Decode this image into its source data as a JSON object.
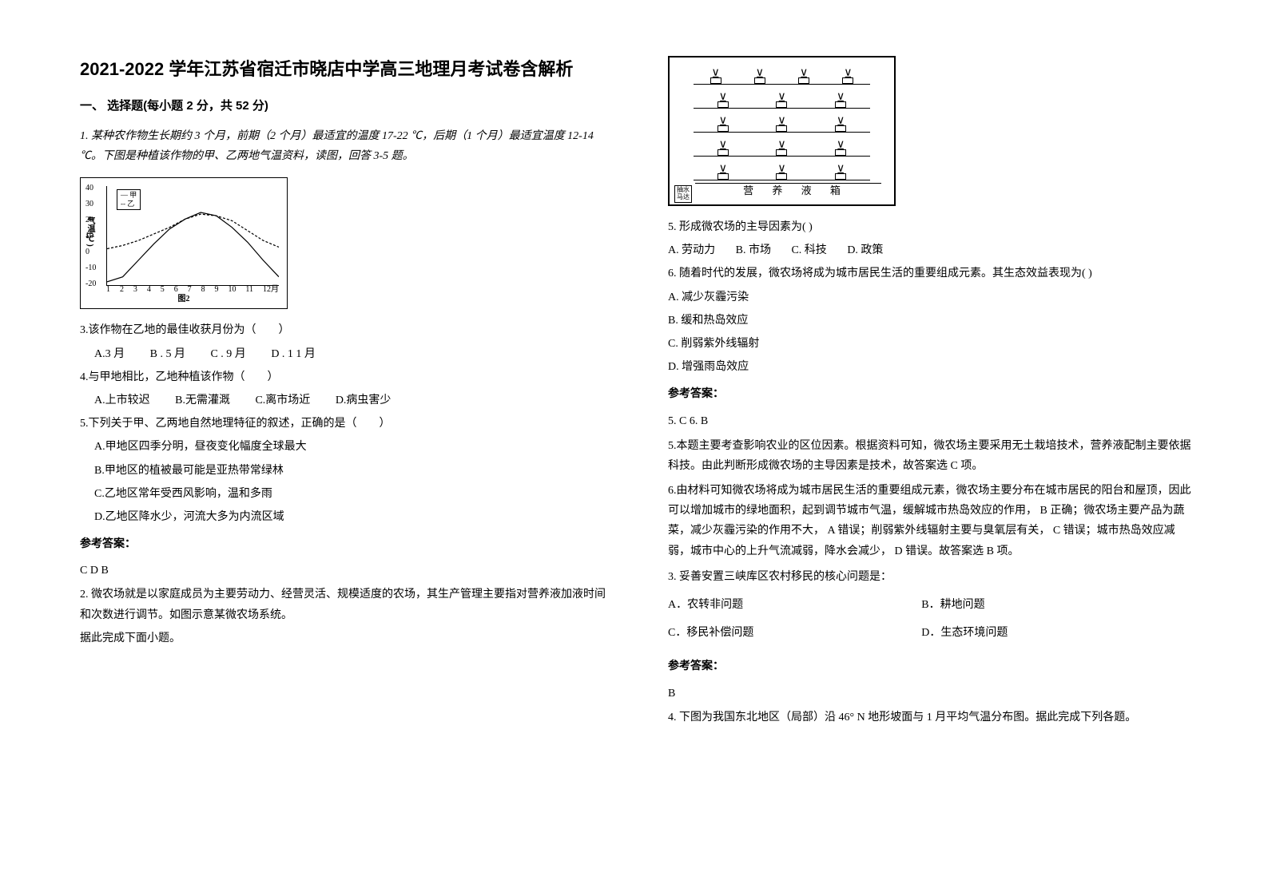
{
  "title": "2021-2022 学年江苏省宿迁市晓店中学高三地理月考试卷含解析",
  "section1_heading": "一、 选择题(每小题 2 分，共 52 分)",
  "q1": {
    "stem": "1. 某种农作物生长期约 3 个月，前期（2 个月）最适宜的温度 17-22 ℃，后期（1 个月）最适宜温度 12-14 ℃。下图是种植该作物的甲、乙两地气温资料，读图，回答 3-5 题。"
  },
  "chart": {
    "y_ticks": [
      "40",
      "30",
      "20",
      "10",
      "0",
      "-10",
      "-20"
    ],
    "y_label": "气温(℃)",
    "x_ticks": [
      "1",
      "2",
      "3",
      "4",
      "5",
      "6",
      "7",
      "8",
      "9",
      "10",
      "11",
      "12月"
    ],
    "legend": [
      "甲",
      "乙"
    ],
    "caption": "图2",
    "series_a": [
      -18,
      -15,
      -5,
      5,
      14,
      20,
      24,
      22,
      15,
      6,
      -5,
      -15
    ],
    "series_b": [
      2,
      4,
      7,
      11,
      15,
      20,
      23,
      22,
      19,
      13,
      7,
      3
    ],
    "colors": {
      "a": "#000000",
      "b": "#000000"
    },
    "ylim": [
      -20,
      40
    ]
  },
  "q3": {
    "text": "3.该作物在乙地的最佳收获月份为（　　）",
    "opts": [
      "A.3 月",
      "B . 5 月",
      "C . 9 月",
      "D . 1 1 月"
    ]
  },
  "q4": {
    "text": "4.与甲地相比，乙地种植该作物（　　）",
    "opts": [
      "A.上市较迟",
      "B.无需灌溉",
      "C.离市场近",
      "D.病虫害少"
    ]
  },
  "q5list": {
    "text": "5.下列关于甲、乙两地自然地理特征的叙述，正确的是（　　）",
    "opts": [
      "A.甲地区四季分明，昼夜变化幅度全球最大",
      "B.甲地区的植被最可能是亚热带常绿林",
      "C.乙地区常年受西风影响，温和多雨",
      "D.乙地区降水少，河流大多为内流区域"
    ]
  },
  "ans1_h": "参考答案：",
  "ans1": "C  D  B",
  "q2": {
    "stem_a": "2. 微农场就是以家庭成员为主要劳动力、经营灵活、规模适度的农场，其生产管理主要指对营养液加液时间和次数进行调节。如图示意某微农场系统。",
    "stem_b": "据此完成下面小题。"
  },
  "diagram": {
    "pump": "抽水马达",
    "tank": "营 养 液 箱",
    "rows": 5
  },
  "q5r": {
    "text": "5. 形成微农场的主导因素为(     )",
    "opts": [
      "A.  劳动力",
      "B.  市场",
      "C.  科技",
      "D.  政策"
    ]
  },
  "q6": {
    "text": "6. 随着时代的发展，微农场将成为城市居民生活的重要组成元素。其生态效益表现为(     )",
    "opts": [
      "A.  减少灰霾污染",
      "B.  缓和热岛效应",
      "C.  削弱紫外线辐射",
      "D.  增强雨岛效应"
    ]
  },
  "ans2_h": "参考答案：",
  "ans2_line": "5.  C           6.  B",
  "exp5": "5.本题主要考查影响农业的区位因素。根据资料可知，微农场主要采用无土栽培技术，营养液配制主要依据科技。由此判断形成微农场的主导因素是技术，故答案选 C 项。",
  "exp6": "6.由材料可知微农场将成为城市居民生活的重要组成元素，微农场主要分布在城市居民的阳台和屋顶，因此可以增加城市的绿地面积，起到调节城市气温，缓解城市热岛效应的作用， B 正确；微农场主要产品为蔬菜，减少灰霾污染的作用不大， A 错误；削弱紫外线辐射主要与臭氧层有关， C 错误；城市热岛效应减弱，城市中心的上升气流减弱，降水会减少， D 错误。故答案选 B 项。",
  "q3r": {
    "text": "3. 妥善安置三峡库区农村移民的核心问题是：",
    "opts": [
      "A．农转非问题",
      "B．耕地问题",
      "C．移民补偿问题",
      "D．生态环境问题"
    ]
  },
  "ans3_h": "参考答案：",
  "ans3": "B",
  "q4r": {
    "text": "4. 下图为我国东北地区（局部）沿 46° N 地形坡面与 1 月平均气温分布图。据此完成下列各题。"
  }
}
